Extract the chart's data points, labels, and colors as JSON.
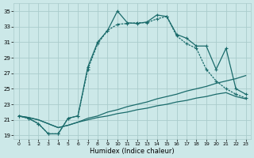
{
  "xlabel": "Humidex (Indice chaleur)",
  "bg_color": "#cce8e8",
  "line_color": "#1a6b6b",
  "grid_color": "#aacccc",
  "xlim": [
    -0.5,
    23.5
  ],
  "ylim": [
    18.5,
    36
  ],
  "xticks": [
    0,
    1,
    2,
    3,
    4,
    5,
    6,
    7,
    8,
    9,
    10,
    11,
    12,
    13,
    14,
    15,
    16,
    17,
    18,
    19,
    20,
    21,
    22,
    23
  ],
  "yticks": [
    19,
    21,
    23,
    25,
    27,
    29,
    31,
    33,
    35
  ],
  "line1_x": [
    0,
    1,
    2,
    3,
    4,
    5,
    6,
    7,
    8,
    9,
    10,
    11,
    12,
    13,
    14,
    15,
    16,
    17,
    18,
    19,
    20,
    21,
    22,
    23
  ],
  "line1_y": [
    21.5,
    21.2,
    20.5,
    19.2,
    19.2,
    21.2,
    21.5,
    27.8,
    31.0,
    32.5,
    35.0,
    33.5,
    33.4,
    33.6,
    34.5,
    34.3,
    32.0,
    31.5,
    30.5,
    30.5,
    27.5,
    30.2,
    25.0,
    24.3
  ],
  "line2_x": [
    0,
    1,
    2,
    3,
    4,
    5,
    6,
    7,
    8,
    9,
    10,
    11,
    12,
    13,
    14,
    15,
    16,
    17,
    18,
    19,
    20,
    21,
    22,
    23
  ],
  "line2_y": [
    21.5,
    21.2,
    20.5,
    19.2,
    19.2,
    21.2,
    21.5,
    27.5,
    30.8,
    32.5,
    33.3,
    33.4,
    33.5,
    33.5,
    34.0,
    34.3,
    31.8,
    30.8,
    30.2,
    27.5,
    26.0,
    25.0,
    24.3,
    23.8
  ],
  "line3_x": [
    0,
    1,
    2,
    3,
    4,
    5,
    6,
    7,
    8,
    9,
    10,
    11,
    12,
    13,
    14,
    15,
    16,
    17,
    18,
    19,
    20,
    21,
    22,
    23
  ],
  "line3_y": [
    21.5,
    21.3,
    21.0,
    20.5,
    20.0,
    20.3,
    20.7,
    21.2,
    21.5,
    22.0,
    22.3,
    22.7,
    23.0,
    23.3,
    23.7,
    24.0,
    24.3,
    24.7,
    25.0,
    25.3,
    25.7,
    26.0,
    26.3,
    26.7
  ],
  "line4_x": [
    0,
    1,
    2,
    3,
    4,
    5,
    6,
    7,
    8,
    9,
    10,
    11,
    12,
    13,
    14,
    15,
    16,
    17,
    18,
    19,
    20,
    21,
    22,
    23
  ],
  "line4_y": [
    21.5,
    21.3,
    21.0,
    20.5,
    20.0,
    20.3,
    20.7,
    21.0,
    21.3,
    21.5,
    21.8,
    22.0,
    22.3,
    22.5,
    22.8,
    23.0,
    23.3,
    23.5,
    23.8,
    24.0,
    24.3,
    24.5,
    24.0,
    23.7
  ]
}
